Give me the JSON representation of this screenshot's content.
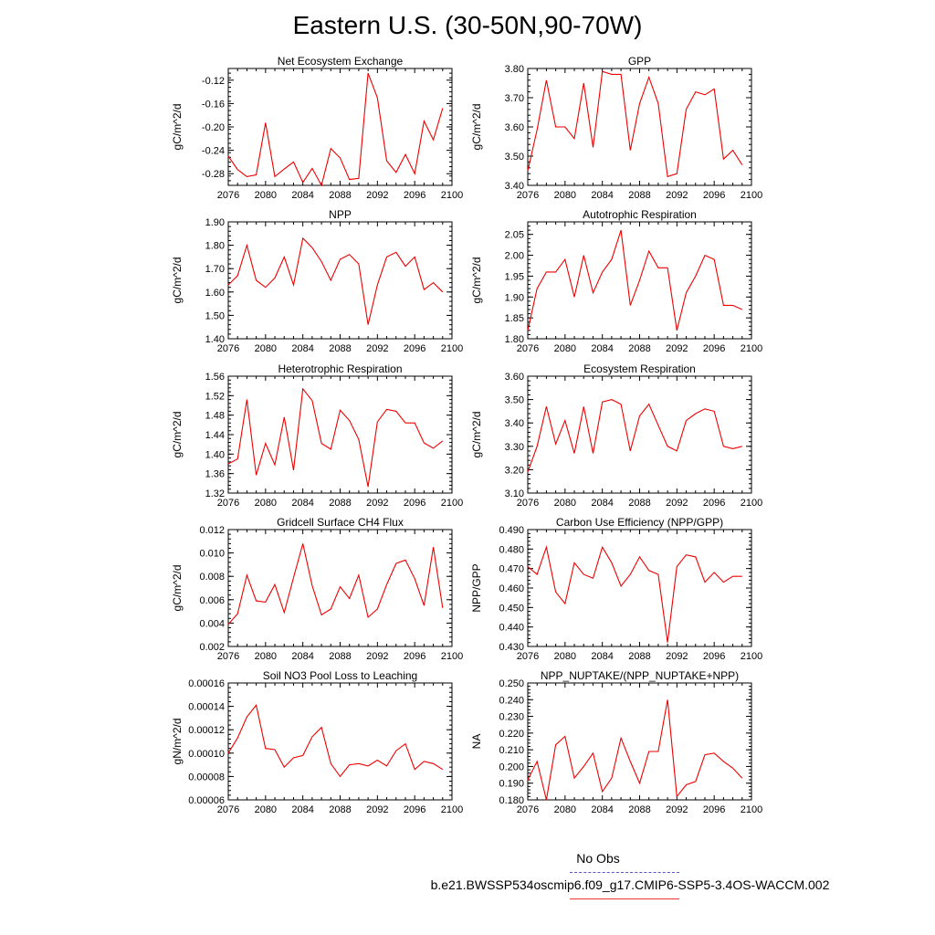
{
  "title": "Eastern U.S. (30-50N,90-70W)",
  "legend": {
    "obs_label": "No Obs",
    "model_label": "b.e21.BWSSP534oscmip6.f09_g17.CMIP6-SSP5-3.4OS-WACCM.002",
    "obs_color": "#5555cc",
    "model_color": "#ee0000"
  },
  "chart_data": [
    {
      "type": "line",
      "title": "Net Ecosystem Exchange",
      "ylabel": "gC/m^2/d",
      "xlim": [
        2076,
        2100
      ],
      "xticks": [
        2076,
        2080,
        2084,
        2088,
        2092,
        2096,
        2100
      ],
      "ylim": [
        -0.3,
        -0.1
      ],
      "yticks": [
        -0.28,
        -0.24,
        -0.2,
        -0.16,
        -0.12
      ],
      "ytick_labels": [
        "-0.28",
        "-0.24",
        "-0.20",
        "-0.16",
        "-0.12"
      ],
      "x": [
        2076,
        2077,
        2078,
        2079,
        2080,
        2081,
        2082,
        2083,
        2084,
        2085,
        2086,
        2087,
        2088,
        2089,
        2090,
        2091,
        2092,
        2093,
        2094,
        2095,
        2096,
        2097,
        2098,
        2099
      ],
      "series": [
        {
          "values": [
            -0.25,
            -0.273,
            -0.285,
            -0.282,
            -0.193,
            -0.285,
            -0.272,
            -0.26,
            -0.295,
            -0.271,
            -0.3,
            -0.237,
            -0.253,
            -0.29,
            -0.288,
            -0.108,
            -0.15,
            -0.258,
            -0.278,
            -0.247,
            -0.28,
            -0.19,
            -0.222,
            -0.168
          ]
        }
      ]
    },
    {
      "type": "line",
      "title": "GPP",
      "ylabel": "gC/m^2/d",
      "xlim": [
        2076,
        2100
      ],
      "xticks": [
        2076,
        2080,
        2084,
        2088,
        2092,
        2096,
        2100
      ],
      "ylim": [
        3.4,
        3.8
      ],
      "yticks": [
        3.4,
        3.5,
        3.6,
        3.7,
        3.8
      ],
      "ytick_labels": [
        "3.40",
        "3.50",
        "3.60",
        "3.70",
        "3.80"
      ],
      "x": [
        2076,
        2077,
        2078,
        2079,
        2080,
        2081,
        2082,
        2083,
        2084,
        2085,
        2086,
        2087,
        2088,
        2089,
        2090,
        2091,
        2092,
        2093,
        2094,
        2095,
        2096,
        2097,
        2098,
        2099
      ],
      "series": [
        {
          "values": [
            3.45,
            3.59,
            3.76,
            3.6,
            3.6,
            3.56,
            3.75,
            3.53,
            3.79,
            3.78,
            3.78,
            3.52,
            3.68,
            3.77,
            3.68,
            3.43,
            3.44,
            3.66,
            3.72,
            3.71,
            3.73,
            3.49,
            3.52,
            3.47
          ]
        }
      ]
    },
    {
      "type": "line",
      "title": "NPP",
      "ylabel": "gC/m^2/d",
      "xlim": [
        2076,
        2100
      ],
      "xticks": [
        2076,
        2080,
        2084,
        2088,
        2092,
        2096,
        2100
      ],
      "ylim": [
        1.4,
        1.9
      ],
      "yticks": [
        1.4,
        1.5,
        1.6,
        1.7,
        1.8,
        1.9
      ],
      "ytick_labels": [
        "1.40",
        "1.50",
        "1.60",
        "1.70",
        "1.80",
        "1.90"
      ],
      "x": [
        2076,
        2077,
        2078,
        2079,
        2080,
        2081,
        2082,
        2083,
        2084,
        2085,
        2086,
        2087,
        2088,
        2089,
        2090,
        2091,
        2092,
        2093,
        2094,
        2095,
        2096,
        2097,
        2098,
        2099
      ],
      "series": [
        {
          "values": [
            1.63,
            1.67,
            1.8,
            1.65,
            1.62,
            1.66,
            1.75,
            1.63,
            1.83,
            1.79,
            1.73,
            1.65,
            1.74,
            1.76,
            1.72,
            1.46,
            1.63,
            1.75,
            1.77,
            1.71,
            1.75,
            1.61,
            1.64,
            1.6
          ]
        }
      ]
    },
    {
      "type": "line",
      "title": "Autotrophic Respiration",
      "ylabel": "gC/m^2/d",
      "xlim": [
        2076,
        2100
      ],
      "xticks": [
        2076,
        2080,
        2084,
        2088,
        2092,
        2096,
        2100
      ],
      "ylim": [
        1.8,
        2.08
      ],
      "yticks": [
        1.8,
        1.85,
        1.9,
        1.95,
        2.0,
        2.05
      ],
      "ytick_labels": [
        "1.80",
        "1.85",
        "1.90",
        "1.95",
        "2.00",
        "2.05"
      ],
      "x": [
        2076,
        2077,
        2078,
        2079,
        2080,
        2081,
        2082,
        2083,
        2084,
        2085,
        2086,
        2087,
        2088,
        2089,
        2090,
        2091,
        2092,
        2093,
        2094,
        2095,
        2096,
        2097,
        2098,
        2099
      ],
      "series": [
        {
          "values": [
            1.82,
            1.92,
            1.96,
            1.96,
            1.99,
            1.9,
            2.0,
            1.91,
            1.96,
            1.99,
            2.06,
            1.88,
            1.94,
            2.01,
            1.97,
            1.97,
            1.82,
            1.91,
            1.95,
            2.0,
            1.99,
            1.88,
            1.88,
            1.87
          ]
        }
      ]
    },
    {
      "type": "line",
      "title": "Heterotrophic Respiration",
      "ylabel": "gC/m^2/d",
      "xlim": [
        2076,
        2100
      ],
      "xticks": [
        2076,
        2080,
        2084,
        2088,
        2092,
        2096,
        2100
      ],
      "ylim": [
        1.32,
        1.56
      ],
      "yticks": [
        1.32,
        1.36,
        1.4,
        1.44,
        1.48,
        1.52,
        1.56
      ],
      "ytick_labels": [
        "1.32",
        "1.36",
        "1.40",
        "1.44",
        "1.48",
        "1.52",
        "1.56"
      ],
      "x": [
        2076,
        2077,
        2078,
        2079,
        2080,
        2081,
        2082,
        2083,
        2084,
        2085,
        2086,
        2087,
        2088,
        2089,
        2090,
        2091,
        2092,
        2093,
        2094,
        2095,
        2096,
        2097,
        2098,
        2099
      ],
      "series": [
        {
          "values": [
            1.38,
            1.39,
            1.512,
            1.357,
            1.422,
            1.378,
            1.476,
            1.367,
            1.534,
            1.51,
            1.422,
            1.41,
            1.49,
            1.469,
            1.43,
            1.333,
            1.466,
            1.492,
            1.488,
            1.464,
            1.464,
            1.423,
            1.412,
            1.427
          ]
        }
      ]
    },
    {
      "type": "line",
      "title": "Ecosystem Respiration",
      "ylabel": "gC/m^2/d",
      "xlim": [
        2076,
        2100
      ],
      "xticks": [
        2076,
        2080,
        2084,
        2088,
        2092,
        2096,
        2100
      ],
      "ylim": [
        3.1,
        3.6
      ],
      "yticks": [
        3.1,
        3.2,
        3.3,
        3.4,
        3.5,
        3.6
      ],
      "ytick_labels": [
        "3.10",
        "3.20",
        "3.30",
        "3.40",
        "3.50",
        "3.60"
      ],
      "x": [
        2076,
        2077,
        2078,
        2079,
        2080,
        2081,
        2082,
        2083,
        2084,
        2085,
        2086,
        2087,
        2088,
        2089,
        2090,
        2091,
        2092,
        2093,
        2094,
        2095,
        2096,
        2097,
        2098,
        2099
      ],
      "series": [
        {
          "values": [
            3.19,
            3.3,
            3.47,
            3.31,
            3.41,
            3.27,
            3.47,
            3.27,
            3.49,
            3.5,
            3.48,
            3.28,
            3.43,
            3.48,
            3.39,
            3.3,
            3.28,
            3.41,
            3.44,
            3.46,
            3.45,
            3.3,
            3.29,
            3.3
          ]
        }
      ]
    },
    {
      "type": "line",
      "title": "Gridcell Surface CH4 Flux",
      "ylabel": "gC/m^2/d",
      "xlim": [
        2076,
        2100
      ],
      "xticks": [
        2076,
        2080,
        2084,
        2088,
        2092,
        2096,
        2100
      ],
      "ylim": [
        0.002,
        0.012
      ],
      "yticks": [
        0.002,
        0.004,
        0.006,
        0.008,
        0.01,
        0.012
      ],
      "ytick_labels": [
        "0.002",
        "0.004",
        "0.006",
        "0.008",
        "0.010",
        "0.012"
      ],
      "x": [
        2076,
        2077,
        2078,
        2079,
        2080,
        2081,
        2082,
        2083,
        2084,
        2085,
        2086,
        2087,
        2088,
        2089,
        2090,
        2091,
        2092,
        2093,
        2094,
        2095,
        2096,
        2097,
        2098,
        2099
      ],
      "series": [
        {
          "values": [
            0.0039,
            0.0048,
            0.0081,
            0.0059,
            0.0058,
            0.0073,
            0.0049,
            0.0079,
            0.0108,
            0.0072,
            0.0047,
            0.0052,
            0.0071,
            0.0061,
            0.0081,
            0.0045,
            0.0052,
            0.0073,
            0.0091,
            0.0094,
            0.0078,
            0.0055,
            0.0105,
            0.0053
          ]
        }
      ]
    },
    {
      "type": "line",
      "title": "Carbon Use Efficiency (NPP/GPP)",
      "ylabel": "NPP/GPP",
      "xlim": [
        2076,
        2100
      ],
      "xticks": [
        2076,
        2080,
        2084,
        2088,
        2092,
        2096,
        2100
      ],
      "ylim": [
        0.43,
        0.49
      ],
      "yticks": [
        0.43,
        0.44,
        0.45,
        0.46,
        0.47,
        0.48,
        0.49
      ],
      "ytick_labels": [
        "0.430",
        "0.440",
        "0.450",
        "0.460",
        "0.470",
        "0.480",
        "0.490"
      ],
      "x": [
        2076,
        2077,
        2078,
        2079,
        2080,
        2081,
        2082,
        2083,
        2084,
        2085,
        2086,
        2087,
        2088,
        2089,
        2090,
        2091,
        2092,
        2093,
        2094,
        2095,
        2096,
        2097,
        2098,
        2099
      ],
      "series": [
        {
          "values": [
            0.471,
            0.467,
            0.481,
            0.458,
            0.452,
            0.473,
            0.467,
            0.465,
            0.481,
            0.473,
            0.461,
            0.467,
            0.476,
            0.469,
            0.467,
            0.432,
            0.471,
            0.477,
            0.476,
            0.463,
            0.468,
            0.463,
            0.466,
            0.466
          ]
        }
      ]
    },
    {
      "type": "line",
      "title": "Soil NO3 Pool Loss to Leaching",
      "ylabel": "gN/m^2/d",
      "xlim": [
        2076,
        2100
      ],
      "xticks": [
        2076,
        2080,
        2084,
        2088,
        2092,
        2096,
        2100
      ],
      "ylim": [
        6e-05,
        0.00016
      ],
      "yticks": [
        6e-05,
        8e-05,
        0.0001,
        0.00012,
        0.00014,
        0.00016
      ],
      "ytick_labels": [
        "0.00006",
        "0.00008",
        "0.00010",
        "0.00012",
        "0.00014",
        "0.00016"
      ],
      "x": [
        2076,
        2077,
        2078,
        2079,
        2080,
        2081,
        2082,
        2083,
        2084,
        2085,
        2086,
        2087,
        2088,
        2089,
        2090,
        2091,
        2092,
        2093,
        2094,
        2095,
        2096,
        2097,
        2098,
        2099
      ],
      "series": [
        {
          "values": [
            0.0001,
            0.000113,
            0.000131,
            0.000141,
            0.000104,
            0.000103,
            8.8e-05,
            9.6e-05,
            9.8e-05,
            0.000114,
            0.000122,
            9.1e-05,
            8e-05,
            9e-05,
            9.1e-05,
            8.9e-05,
            9.4e-05,
            8.9e-05,
            0.000102,
            0.000108,
            8.6e-05,
            9.3e-05,
            9.1e-05,
            8.6e-05
          ]
        }
      ]
    },
    {
      "type": "line",
      "title": "NPP_NUPTAKE/(NPP_NUPTAKE+NPP)",
      "ylabel": "NA",
      "xlim": [
        2076,
        2100
      ],
      "xticks": [
        2076,
        2080,
        2084,
        2088,
        2092,
        2096,
        2100
      ],
      "ylim": [
        0.18,
        0.25
      ],
      "yticks": [
        0.18,
        0.19,
        0.2,
        0.21,
        0.22,
        0.23,
        0.24,
        0.25
      ],
      "ytick_labels": [
        "0.180",
        "0.190",
        "0.200",
        "0.210",
        "0.220",
        "0.230",
        "0.240",
        "0.250"
      ],
      "x": [
        2076,
        2077,
        2078,
        2079,
        2080,
        2081,
        2082,
        2083,
        2084,
        2085,
        2086,
        2087,
        2088,
        2089,
        2090,
        2091,
        2092,
        2093,
        2094,
        2095,
        2096,
        2097,
        2098,
        2099
      ],
      "series": [
        {
          "values": [
            0.192,
            0.203,
            0.18,
            0.213,
            0.218,
            0.193,
            0.2,
            0.208,
            0.185,
            0.193,
            0.217,
            0.203,
            0.19,
            0.209,
            0.209,
            0.24,
            0.182,
            0.189,
            0.191,
            0.207,
            0.208,
            0.203,
            0.199,
            0.193
          ]
        }
      ]
    }
  ]
}
